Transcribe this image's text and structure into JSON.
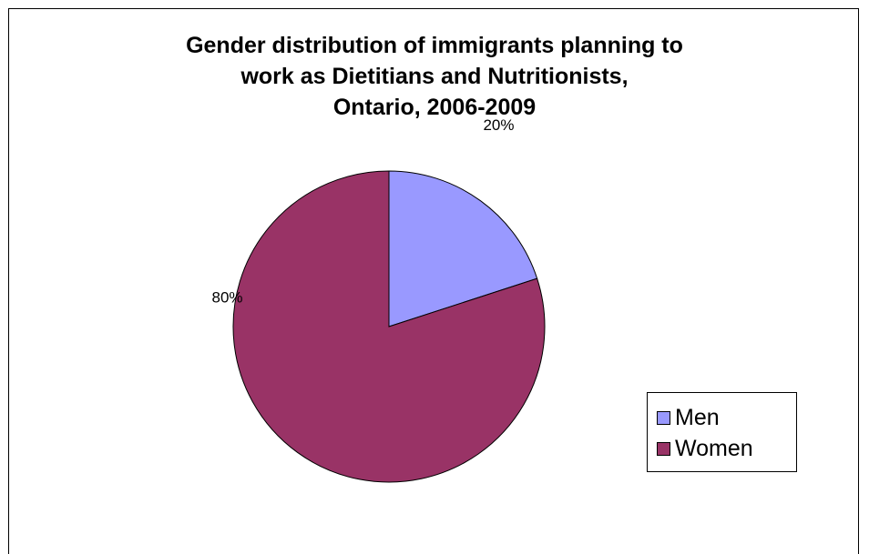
{
  "chart_data": {
    "type": "pie",
    "title_lines": [
      "Gender distribution of immigrants planning to",
      "work as Dietitians and Nutritionists,",
      "Ontario, 2006-2009"
    ],
    "categories": [
      "Men",
      "Women"
    ],
    "values": [
      20,
      80
    ],
    "data_labels": [
      "20%",
      "80%"
    ],
    "colors": [
      "#9999ff",
      "#993366"
    ],
    "legend_position": "right"
  }
}
